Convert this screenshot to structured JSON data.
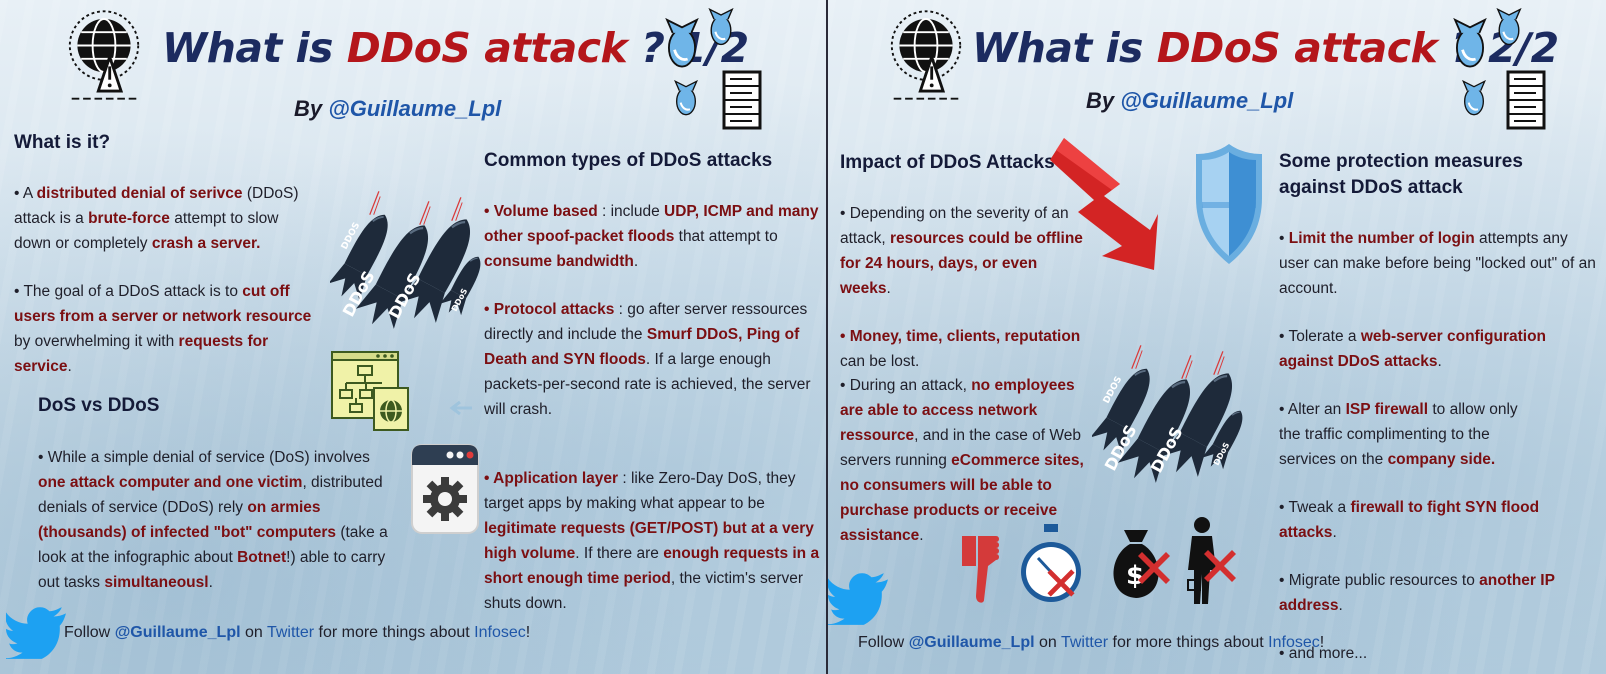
{
  "colors": {
    "navy": "#1c2b60",
    "red": "#b4161b",
    "dark_red_text": "#7b0f12",
    "link_blue": "#1f56a8",
    "twitter_blue": "#1da1f2"
  },
  "icons": [
    "globe-warning-icon",
    "falling-bombs-icon",
    "server-icon",
    "ddos-bombs-icon",
    "network-diagram-icon",
    "settings-window-icon",
    "twitter-icon",
    "red-arrow-down-icon",
    "shield-icon",
    "thumbs-down-icon",
    "stopwatch-x-icon",
    "money-bag-x-icon",
    "person-x-icon"
  ],
  "panel1": {
    "title": {
      "pre": "What is ",
      "accent": "DDoS attack",
      "post": " ? 1/2"
    },
    "byline": {
      "prefix": "By ",
      "handle": "@Guillaume_Lpl"
    },
    "what": {
      "heading": "What is it?",
      "p1": {
        "t1": "• A ",
        "b1": "distributed denial of serivce",
        "t2": " (DDoS) attack is a ",
        "b2": "brute-force",
        "t3": " attempt to slow down or completely ",
        "b3": "crash a server."
      },
      "p2": {
        "t1": "• The goal of a DDoS attack is to ",
        "b1": "cut off users from a server or network resource",
        "t2": " by overwhelming it with ",
        "b2": "requests for service",
        "t3": "."
      }
    },
    "bomb_labels": [
      "DDOS",
      "DDoS",
      "DDoS",
      "DDoS"
    ],
    "dos": {
      "heading": "DoS vs DDoS",
      "p1": {
        "t1": "• While a simple denial of service (DoS) involves ",
        "b1": "one attack computer and one victim",
        "t2": ", distributed denials of service (DDoS) rely ",
        "b2": "on armies (thousands) of infected \"bot\" computers",
        "t3": " (take a look at the infographic about ",
        "b3": "Botnet",
        "t4": "!) able to carry out tasks ",
        "b4": "simultaneousl",
        "t5": "."
      }
    },
    "types": {
      "heading": "Common types of DDoS attacks",
      "volume": {
        "b1": "• Volume based",
        "t1": " : include ",
        "b2": "UDP, ICMP and many other spoof-packet floods",
        "t2": " that attempt to ",
        "b3": "consume bandwidth",
        "t3": "."
      },
      "protocol": {
        "b1": "• Protocol attacks",
        "t1": " : go after server ressources directly and include the ",
        "b2": "Smurf DDoS, Ping of Death and SYN floods",
        "t2": ". If a large enough packets-per-second rate is achieved, the server will crash."
      },
      "application": {
        "b1": "• Application layer",
        "t1": " : like Zero-Day DoS, they target apps by making what appear to be ",
        "b2": "legitimate requests (GET/POST) but at a very high volume",
        "t2": ". If there are ",
        "b3": "enough requests in a short enough time period",
        "t3": ", the victim's server shuts down."
      }
    },
    "footer": {
      "t1": "Follow ",
      "handle": "@Guillaume_Lpl",
      "t2": " on ",
      "twitter": "Twitter",
      "t3": " for more things about ",
      "infosec": "Infosec",
      "t4": "!"
    }
  },
  "panel2": {
    "title": {
      "pre": "What is ",
      "accent": "DDoS attack",
      "post": " ? 2/2"
    },
    "byline": {
      "prefix": "By ",
      "handle": "@Guillaume_Lpl"
    },
    "impact": {
      "heading": "Impact of DDoS Attacks",
      "p1": {
        "t1": "• Depending on the severity of an attack, ",
        "b1": "resources could be offline for 24 hours, days, or even weeks",
        "t2": "."
      },
      "p2": {
        "b1": "• Money, time, clients, reputation",
        "t1": " can be lost."
      },
      "p3": {
        "t1": "• During an attack, ",
        "b1": "no employees are able to access network ressource",
        "t2": ", and in the case of Web servers running ",
        "b2": "eCommerce sites, no consumers will be able to purchase products or receive assistance",
        "t3": "."
      }
    },
    "bomb_labels": [
      "DDOS",
      "DDoS",
      "DDoS",
      "DDoS"
    ],
    "protection": {
      "heading": "Some protection measures against DDoS attack",
      "items": [
        {
          "t1": "• ",
          "b1": "Limit the number of login",
          "t2": " attempts any user can make before being \"locked out\" of an account."
        },
        {
          "t1": "• Tolerate a ",
          "b1": "web-server configuration against DDoS attacks",
          "t2": "."
        },
        {
          "t1": "• Alter an ",
          "b1": "ISP firewall",
          "t2": " to allow only the traffic complimenting to the services on the ",
          "b2": "company side.",
          "t3": ""
        },
        {
          "t1": "• Tweak a ",
          "b1": "firewall to fight SYN flood attacks",
          "t2": "."
        },
        {
          "t1": "• Migrate public resources to ",
          "b1": "another IP address",
          "t2": "."
        },
        {
          "t1": "• and more...",
          "b1": "",
          "t2": ""
        }
      ]
    },
    "footer": {
      "t1": "Follow ",
      "handle": "@Guillaume_Lpl",
      "t2": " on ",
      "twitter": "Twitter",
      "t3": " for more things about ",
      "infosec": "Infosec",
      "t4": "!"
    }
  }
}
